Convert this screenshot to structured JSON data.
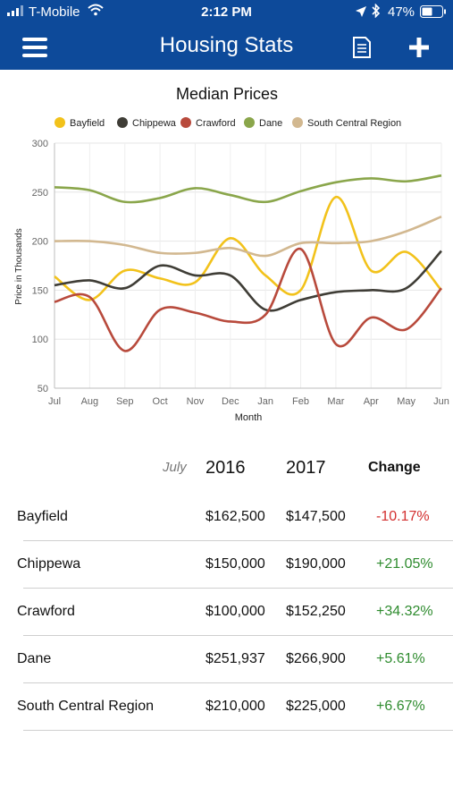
{
  "status_bar": {
    "carrier": "T-Mobile",
    "time": "2:12 PM",
    "battery": "47%"
  },
  "nav": {
    "title": "Housing Stats",
    "menu_icon": "hamburger-icon",
    "report_icon": "document-icon",
    "add_icon": "plus-icon"
  },
  "colors": {
    "nav_bg": "#0d4a9a",
    "negative": "#d32f2f",
    "positive": "#2e8b2e"
  },
  "chart_data": {
    "type": "line",
    "title": "Median Prices",
    "xlabel": "Month",
    "ylabel": "Price in Thousands",
    "categories": [
      "Jul",
      "Aug",
      "Sep",
      "Oct",
      "Nov",
      "Dec",
      "Jan",
      "Feb",
      "Mar",
      "Apr",
      "May",
      "Jun"
    ],
    "ylim": [
      50,
      300
    ],
    "yticks": [
      50,
      100,
      150,
      200,
      250,
      300
    ],
    "grid": true,
    "legend_position": "top",
    "series": [
      {
        "name": "Bayfield",
        "color": "#f2c21b",
        "values": [
          164,
          140,
          170,
          162,
          158,
          203,
          165,
          150,
          245,
          170,
          189,
          150
        ]
      },
      {
        "name": "Chippewa",
        "color": "#3f3d36",
        "values": [
          155,
          160,
          152,
          175,
          165,
          165,
          130,
          140,
          148,
          150,
          152,
          190
        ]
      },
      {
        "name": "Crawford",
        "color": "#b84a3c",
        "values": [
          138,
          143,
          88,
          130,
          127,
          118,
          125,
          192,
          95,
          122,
          110,
          152
        ]
      },
      {
        "name": "Dane",
        "color": "#8aa64b",
        "values": [
          255,
          252,
          240,
          244,
          254,
          247,
          240,
          251,
          260,
          264,
          261,
          267
        ]
      },
      {
        "name": "South Central Region",
        "color": "#d2b890",
        "values": [
          200,
          200,
          196,
          188,
          188,
          193,
          185,
          198,
          198,
          200,
          210,
          225
        ]
      }
    ]
  },
  "stats": {
    "month_label": "July",
    "col_year1": "2016",
    "col_year2": "2017",
    "col_change": "Change",
    "rows": [
      {
        "name": "Bayfield",
        "v2016": "$162,500",
        "v2017": "$147,500",
        "change": "-10.17%"
      },
      {
        "name": "Chippewa",
        "v2016": "$150,000",
        "v2017": "$190,000",
        "change": "+21.05%"
      },
      {
        "name": "Crawford",
        "v2016": "$100,000",
        "v2017": "$152,250",
        "change": "+34.32%"
      },
      {
        "name": "Dane",
        "v2016": "$251,937",
        "v2017": "$266,900",
        "change": "+5.61%"
      },
      {
        "name": "South Central Region",
        "v2016": "$210,000",
        "v2017": "$225,000",
        "change": "+6.67%"
      }
    ]
  }
}
